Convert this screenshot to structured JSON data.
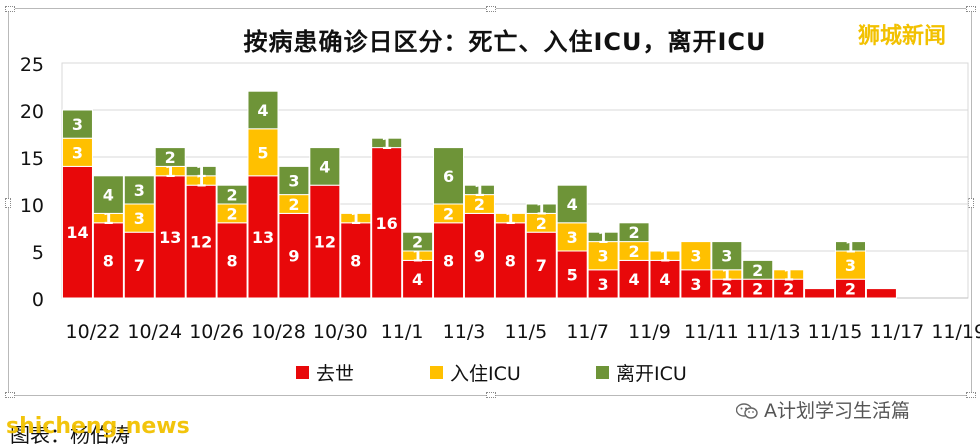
{
  "brand": "狮城新闻",
  "credit": "图表：杨伯涛",
  "watermark": "shicheng.news",
  "wechat": "A计划学习生活篇",
  "colors": {
    "died": "#e8080a",
    "icu": "#ffc000",
    "left": "#6e9438"
  },
  "chart_data": {
    "type": "bar",
    "stacked": true,
    "title": "按病患确诊日区分：死亡、入住ICU，离开ICU",
    "categories": [
      "10/22",
      "10/23",
      "10/24",
      "10/25",
      "10/26",
      "10/27",
      "10/28",
      "10/29",
      "10/30",
      "10/31",
      "11/1",
      "11/2",
      "11/3",
      "11/4",
      "11/5",
      "11/6",
      "11/7",
      "11/8",
      "11/9",
      "11/10",
      "11/11",
      "11/12",
      "11/13",
      "11/14",
      "11/15",
      "11/16",
      "11/17",
      "11/18",
      "11/19"
    ],
    "tick_labels": [
      "10/22",
      "10/24",
      "10/26",
      "10/28",
      "10/30",
      "11/1",
      "11/3",
      "11/5",
      "11/7",
      "11/9",
      "11/11",
      "11/13",
      "11/15",
      "11/17",
      "11/19"
    ],
    "yticks": [
      "0",
      "5",
      "10",
      "15",
      "20",
      "25"
    ],
    "ylim": [
      0,
      25
    ],
    "grid": true,
    "legend_position": "bottom",
    "series": [
      {
        "name": "去世",
        "color": "#e8080a",
        "values": [
          14,
          8,
          7,
          13,
          12,
          8,
          13,
          9,
          12,
          8,
          16,
          4,
          8,
          9,
          8,
          7,
          5,
          3,
          4,
          4,
          3,
          2,
          2,
          2,
          1,
          2,
          1,
          0,
          0
        ]
      },
      {
        "name": "入住ICU",
        "color": "#ffc000",
        "values": [
          3,
          1,
          3,
          1,
          1,
          2,
          5,
          2,
          0,
          1,
          0,
          1,
          2,
          2,
          1,
          2,
          3,
          3,
          2,
          1,
          3,
          1,
          0,
          1,
          0,
          3,
          0,
          0,
          0
        ]
      },
      {
        "name": "离开ICU",
        "color": "#6e9438",
        "values": [
          3,
          4,
          3,
          2,
          1,
          2,
          4,
          3,
          4,
          0,
          1,
          2,
          6,
          1,
          0,
          1,
          4,
          1,
          2,
          0,
          0,
          3,
          2,
          0,
          0,
          1,
          0,
          0,
          0
        ]
      }
    ],
    "data_labels": [
      [
        "14",
        "3",
        "3"
      ],
      [
        "8",
        "1",
        "4"
      ],
      [
        "7",
        "3",
        "3"
      ],
      [
        "13",
        "1",
        "2"
      ],
      [
        "12",
        "1",
        "1"
      ],
      [
        "8",
        "2",
        "2"
      ],
      [
        "13",
        "5",
        "4"
      ],
      [
        "9",
        "2",
        "3"
      ],
      [
        "12",
        "",
        "4"
      ],
      [
        "8",
        "1",
        ""
      ],
      [
        "16",
        "",
        "1"
      ],
      [
        "4",
        "1",
        "2"
      ],
      [
        "8",
        "2",
        "6"
      ],
      [
        "9",
        "2",
        "1"
      ],
      [
        "8",
        "1",
        ""
      ],
      [
        "7",
        "2",
        "1"
      ],
      [
        "5",
        "3",
        "4"
      ],
      [
        "3",
        "3",
        "1"
      ],
      [
        "4",
        "2",
        "2"
      ],
      [
        "4",
        "1",
        ""
      ],
      [
        "3",
        "3",
        ""
      ],
      [
        "2",
        "1",
        "3"
      ],
      [
        "2",
        "",
        "2"
      ],
      [
        "2",
        "1",
        ""
      ],
      [
        "",
        "",
        ""
      ],
      [
        "2",
        "3",
        "1"
      ],
      [
        "",
        "",
        ""
      ],
      [
        "",
        "",
        ""
      ],
      [
        "",
        "",
        ""
      ]
    ]
  }
}
